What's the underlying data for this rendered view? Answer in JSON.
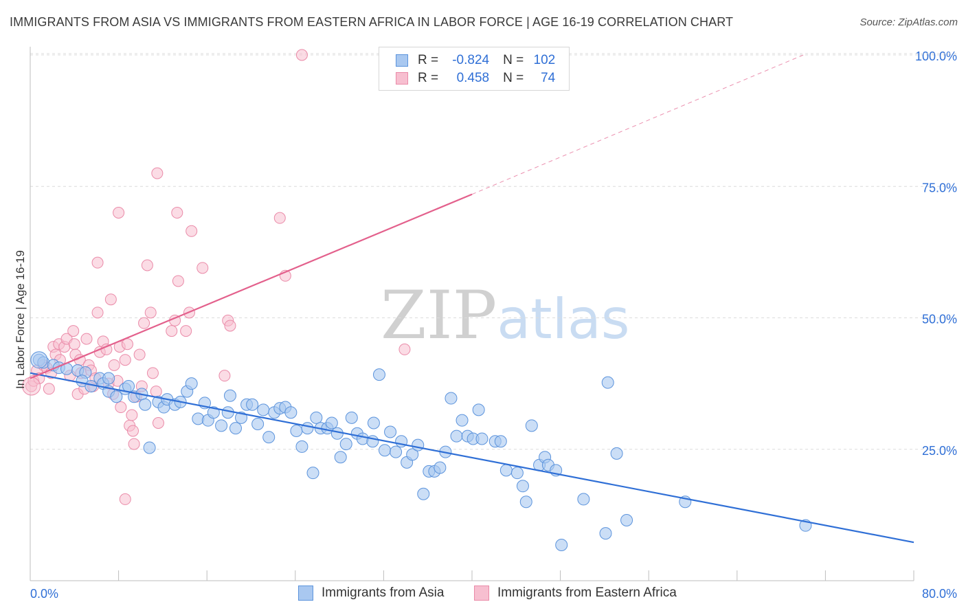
{
  "title": "IMMIGRANTS FROM ASIA VS IMMIGRANTS FROM EASTERN AFRICA IN LABOR FORCE | AGE 16-19 CORRELATION CHART",
  "source": "Source: ZipAtlas.com",
  "watermark": {
    "zip": "ZIP",
    "atlas": "atlas"
  },
  "legend_top": {
    "asia": {
      "r_label": "R =",
      "r_value": "-0.824",
      "n_label": "N =",
      "n_value": "102"
    },
    "eafrica": {
      "r_label": "R =",
      "r_value": "0.458",
      "n_label": "N =",
      "n_value": "74"
    }
  },
  "colors": {
    "asia_fill": "#a9c8f0",
    "asia_stroke": "#5b93dc",
    "asia_line": "#2f6fd6",
    "eafrica_fill": "#f7bfd0",
    "eafrica_stroke": "#ea8aa8",
    "eafrica_line": "#e3608c",
    "grid": "#dcdcdc",
    "tick_text": "#2f6fd6"
  },
  "chart_data": {
    "type": "scatter",
    "xlabel": "",
    "ylabel": "In Labor Force | Age 16-19",
    "xlim": [
      0,
      80
    ],
    "ylim": [
      0,
      105
    ],
    "x_tick_labels": {
      "min": "0.0%",
      "max": "80.0%"
    },
    "y_ticks": [
      25,
      50,
      75,
      100
    ],
    "y_tick_labels": [
      "25.0%",
      "50.0%",
      "75.0%",
      "100.0%"
    ],
    "grid": "horizontal dashed",
    "series": [
      {
        "name": "Immigrants from Asia",
        "r": -0.824,
        "n": 102,
        "trend": {
          "x0": 0,
          "y0": 39.5,
          "x1": 80,
          "y1": 7.3
        },
        "points": [
          [
            0.8,
            42
          ],
          [
            1.2,
            41.5
          ],
          [
            2.1,
            41
          ],
          [
            2.6,
            40.5
          ],
          [
            3.3,
            40.3
          ],
          [
            4.3,
            40
          ],
          [
            5.0,
            39.6
          ],
          [
            4.7,
            38
          ],
          [
            5.5,
            37
          ],
          [
            6.3,
            38.5
          ],
          [
            6.6,
            37.5
          ],
          [
            7.1,
            36
          ],
          [
            7.8,
            35
          ],
          [
            8.6,
            36.5
          ],
          [
            8.9,
            37
          ],
          [
            9.4,
            35
          ],
          [
            10.1,
            35.5
          ],
          [
            10.4,
            33.5
          ],
          [
            10.8,
            25.3
          ],
          [
            11.6,
            34
          ],
          [
            12.1,
            33
          ],
          [
            12.4,
            34.5
          ],
          [
            13.1,
            33.5
          ],
          [
            13.6,
            34
          ],
          [
            14.2,
            36
          ],
          [
            14.6,
            37.5
          ],
          [
            15.2,
            30.8
          ],
          [
            15.8,
            33.8
          ],
          [
            16.1,
            30.5
          ],
          [
            16.6,
            32
          ],
          [
            17.3,
            29.5
          ],
          [
            17.9,
            32
          ],
          [
            18.1,
            35.2
          ],
          [
            18.6,
            29
          ],
          [
            19.1,
            31
          ],
          [
            19.6,
            33.5
          ],
          [
            20.1,
            33.5
          ],
          [
            20.6,
            29.8
          ],
          [
            21.1,
            32.5
          ],
          [
            21.6,
            27.3
          ],
          [
            22.1,
            32
          ],
          [
            22.6,
            32.8
          ],
          [
            23.1,
            33
          ],
          [
            23.6,
            32
          ],
          [
            24.1,
            28.5
          ],
          [
            24.6,
            25.5
          ],
          [
            25.1,
            29
          ],
          [
            25.6,
            20.5
          ],
          [
            25.9,
            31
          ],
          [
            26.3,
            29
          ],
          [
            26.9,
            29
          ],
          [
            27.3,
            30
          ],
          [
            27.8,
            28
          ],
          [
            28.1,
            23.5
          ],
          [
            28.6,
            26
          ],
          [
            29.1,
            31
          ],
          [
            29.6,
            28
          ],
          [
            30.1,
            27
          ],
          [
            31.0,
            26.5
          ],
          [
            31.1,
            30
          ],
          [
            31.6,
            39.2
          ],
          [
            32.1,
            24.8
          ],
          [
            32.6,
            28.3
          ],
          [
            33.1,
            24.5
          ],
          [
            33.6,
            26.5
          ],
          [
            34.1,
            22.5
          ],
          [
            34.6,
            24
          ],
          [
            35.1,
            25.8
          ],
          [
            35.6,
            16.5
          ],
          [
            36.1,
            20.8
          ],
          [
            36.6,
            20.8
          ],
          [
            37.1,
            21.5
          ],
          [
            37.6,
            24.5
          ],
          [
            38.1,
            34.7
          ],
          [
            38.6,
            27.5
          ],
          [
            39.1,
            30.5
          ],
          [
            39.6,
            27.5
          ],
          [
            40.1,
            27
          ],
          [
            40.6,
            32.5
          ],
          [
            40.9,
            27
          ],
          [
            42.1,
            26.5
          ],
          [
            42.6,
            26.5
          ],
          [
            43.1,
            21
          ],
          [
            44.1,
            20.5
          ],
          [
            44.6,
            18
          ],
          [
            44.9,
            15
          ],
          [
            45.4,
            29.5
          ],
          [
            46.1,
            22
          ],
          [
            46.6,
            23.5
          ],
          [
            46.9,
            22
          ],
          [
            47.6,
            21
          ],
          [
            48.1,
            6.8
          ],
          [
            50.1,
            15.5
          ],
          [
            52.1,
            9
          ],
          [
            52.3,
            37.7
          ],
          [
            53.1,
            24.2
          ],
          [
            54.0,
            11.5
          ],
          [
            59.3,
            15
          ],
          [
            70.2,
            10.5
          ],
          [
            7.1,
            38.5
          ]
        ]
      },
      {
        "name": "Immigrants from Eastern Africa",
        "r": 0.458,
        "n": 74,
        "trend": {
          "x0": 0,
          "y0": 38.5,
          "x1": 40,
          "y1": 73.5
        },
        "trend_dashed_to": {
          "x": 70,
          "y": 100
        },
        "points": [
          [
            0.1,
            37
          ],
          [
            0.3,
            38
          ],
          [
            0.6,
            40
          ],
          [
            0.8,
            38.5
          ],
          [
            1.2,
            41
          ],
          [
            1.5,
            40.5
          ],
          [
            1.7,
            36.5
          ],
          [
            1.9,
            39.5
          ],
          [
            2.1,
            44.5
          ],
          [
            2.3,
            43
          ],
          [
            2.6,
            45
          ],
          [
            2.7,
            42
          ],
          [
            3.1,
            44.5
          ],
          [
            3.3,
            46
          ],
          [
            3.6,
            39
          ],
          [
            3.9,
            47.5
          ],
          [
            4.0,
            45
          ],
          [
            4.1,
            43
          ],
          [
            4.3,
            35.5
          ],
          [
            4.5,
            42
          ],
          [
            4.6,
            39.5
          ],
          [
            4.9,
            36.5
          ],
          [
            5.1,
            46
          ],
          [
            5.3,
            41
          ],
          [
            5.5,
            40
          ],
          [
            5.7,
            37
          ],
          [
            5.9,
            38.5
          ],
          [
            6.1,
            51
          ],
          [
            6.1,
            60.5
          ],
          [
            6.3,
            43.5
          ],
          [
            6.6,
            45.5
          ],
          [
            6.9,
            44
          ],
          [
            7.1,
            37.5
          ],
          [
            7.3,
            53.5
          ],
          [
            7.5,
            35.5
          ],
          [
            7.6,
            41
          ],
          [
            7.9,
            38
          ],
          [
            8.0,
            70
          ],
          [
            8.1,
            44.5
          ],
          [
            8.2,
            33
          ],
          [
            8.6,
            42
          ],
          [
            8.6,
            15.5
          ],
          [
            8.8,
            45
          ],
          [
            9.0,
            29.5
          ],
          [
            9.2,
            31.5
          ],
          [
            9.3,
            28.5
          ],
          [
            9.4,
            26
          ],
          [
            9.6,
            35
          ],
          [
            9.9,
            43
          ],
          [
            10.1,
            37
          ],
          [
            10.3,
            49
          ],
          [
            10.6,
            60
          ],
          [
            10.9,
            51
          ],
          [
            11.1,
            39.5
          ],
          [
            11.4,
            36
          ],
          [
            11.5,
            77.5
          ],
          [
            11.6,
            30
          ],
          [
            12.8,
            47.5
          ],
          [
            13.1,
            49.5
          ],
          [
            13.3,
            70
          ],
          [
            13.4,
            57
          ],
          [
            14.1,
            47.5
          ],
          [
            14.4,
            51
          ],
          [
            14.6,
            66.5
          ],
          [
            15.6,
            59.5
          ],
          [
            17.6,
            39
          ],
          [
            17.9,
            49.5
          ],
          [
            18.1,
            48.5
          ],
          [
            22.6,
            69
          ],
          [
            23.1,
            58
          ],
          [
            24.6,
            100
          ],
          [
            33.9,
            44
          ]
        ]
      }
    ]
  },
  "legend_bottom": [
    "Immigrants from Asia",
    "Immigrants from Eastern Africa"
  ]
}
